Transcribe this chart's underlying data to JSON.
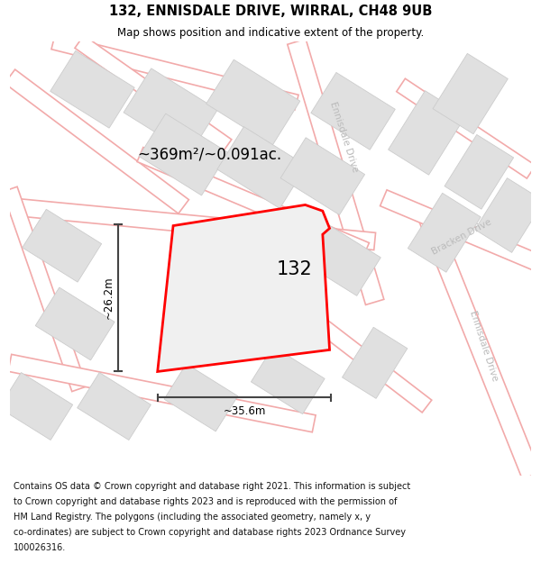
{
  "title": "132, ENNISDALE DRIVE, WIRRAL, CH48 9UB",
  "subtitle": "Map shows position and indicative extent of the property.",
  "area_label": "~369m²/~0.091ac.",
  "plot_number": "132",
  "width_label": "~35.6m",
  "height_label": "~26.2m",
  "background_color": "#ffffff",
  "map_bg_color": "#f7f0f0",
  "footer_lines": [
    "Contains OS data © Crown copyright and database right 2021. This information is subject",
    "to Crown copyright and database rights 2023 and is reproduced with the permission of",
    "HM Land Registry. The polygons (including the associated geometry, namely x, y",
    "co-ordinates) are subject to Crown copyright and database rights 2023 Ordnance Survey",
    "100026316."
  ],
  "road_color": "#f2aaaa",
  "road_lw": 1.2,
  "building_color": "#e0e0e0",
  "building_edge": "#cccccc",
  "plot_fill": "#f0f0f0",
  "plot_edge": "#ff0000",
  "plot_edge_lw": 2.0,
  "street_color": "#bbbbbb",
  "dim_color": "#444444"
}
